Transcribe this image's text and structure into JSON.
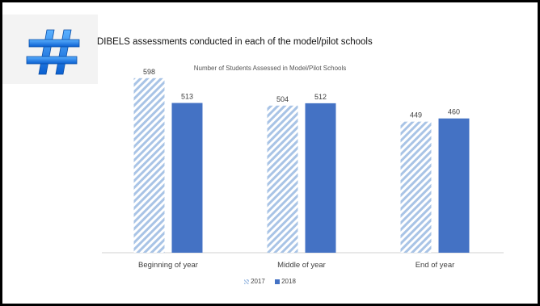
{
  "slide": {
    "title": "DIBELS assessments conducted in each of the model/pilot schools",
    "icon": "hashtag-icon"
  },
  "chart_data": {
    "type": "bar",
    "title": "Number of Students Assessed in Model/Pilot Schools",
    "categories": [
      "Beginning of year",
      "Middle of year",
      "End of year"
    ],
    "series": [
      {
        "name": "2017",
        "values": [
          598,
          504,
          449
        ],
        "color": "#a9c4e6",
        "pattern": "diagonal-stripes"
      },
      {
        "name": "2018",
        "values": [
          513,
          512,
          460
        ],
        "color": "#4472c4"
      }
    ],
    "ylim": [
      0,
      650
    ],
    "grid": false,
    "legend": "bottom",
    "data_labels": true
  }
}
